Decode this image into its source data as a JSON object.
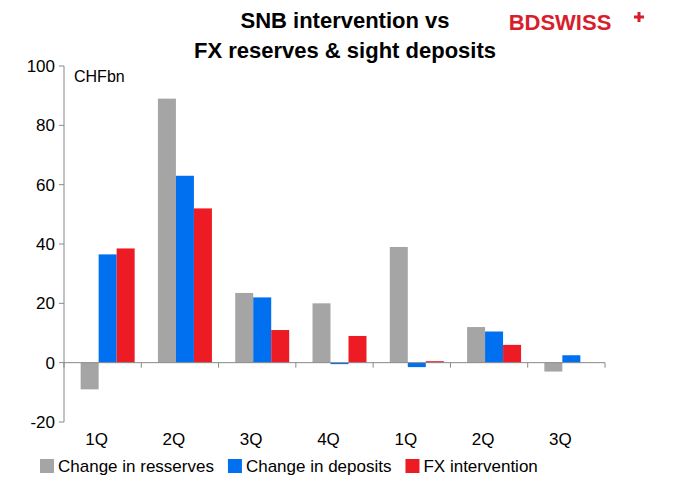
{
  "chart_data": {
    "type": "bar",
    "title": [
      "SNB intervention vs",
      "FX reserves & sight deposits"
    ],
    "logo": "BDSWISS",
    "y_label": "CHFbn",
    "categories": [
      "1Q",
      "2Q",
      "3Q",
      "4Q",
      "1Q",
      "2Q",
      "3Q"
    ],
    "series": [
      {
        "name": "Change in resserves",
        "color": "#a5a5a5",
        "values": [
          -9,
          89,
          23.5,
          20,
          39,
          12,
          -3
        ]
      },
      {
        "name": "Change in deposits",
        "color": "#0070f0",
        "values": [
          36.5,
          63,
          22,
          -0.5,
          -1.5,
          10.5,
          2.5
        ]
      },
      {
        "name": "FX intervention",
        "color": "#ed1c24",
        "values": [
          38.5,
          52,
          11,
          9,
          0.5,
          6,
          null
        ]
      }
    ],
    "ylim": [
      -20,
      100
    ],
    "yticks": [
      -20,
      0,
      20,
      40,
      60,
      80,
      100
    ],
    "grid": false,
    "legend": "bottom"
  }
}
